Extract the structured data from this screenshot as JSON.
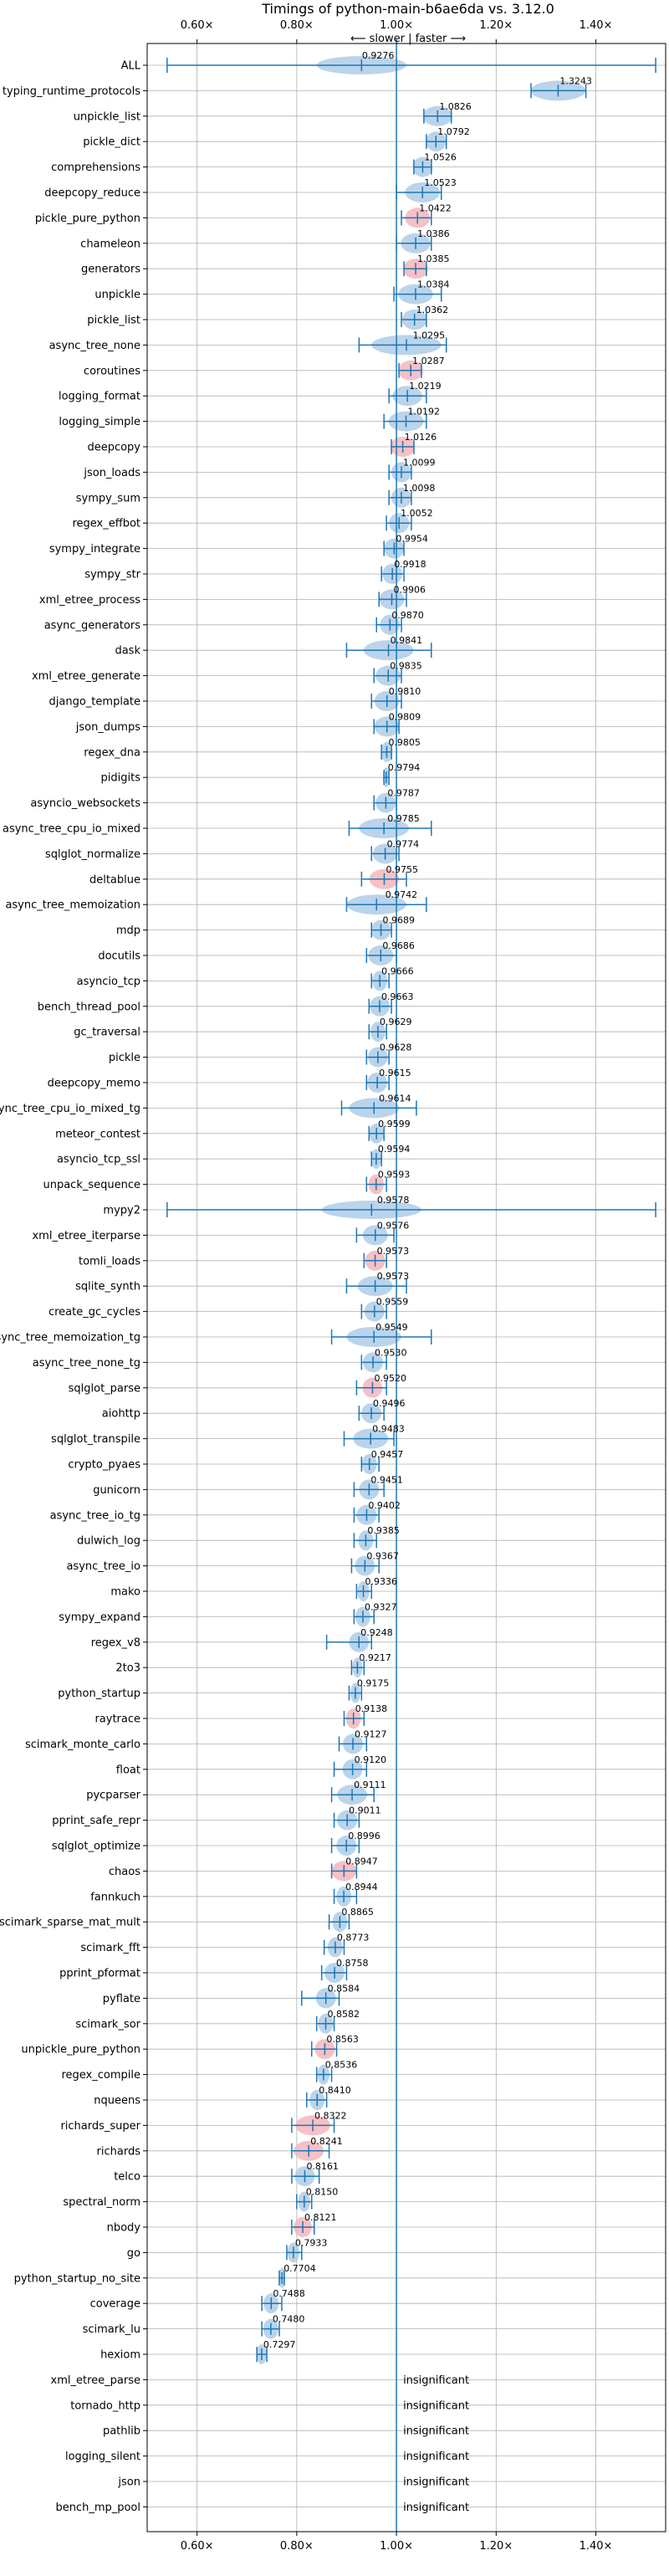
{
  "chart_data": {
    "type": "violin",
    "title": "Timings of python-main-b6ae6da vs. 3.12.0",
    "subtitle": "⟵ slower | faster ⟶",
    "xlim": [
      0.5,
      1.54
    ],
    "xticks": [
      0.6,
      0.8,
      1.0,
      1.2,
      1.4
    ],
    "xtick_labels": [
      "0.60×",
      "0.80×",
      "1.00×",
      "1.20×",
      "1.40×"
    ],
    "reference_line": 1.0,
    "grid": true,
    "colors": {
      "violin": "#aecde8",
      "violin_slower": "#f4b6bc",
      "line": "#1f77b4"
    },
    "insignificant_text": "insignificant",
    "benchmarks": [
      {
        "name": "ALL",
        "value": "0.9276",
        "center": 0.93,
        "lo": 0.54,
        "hi": 1.52,
        "spread": 0.09,
        "slower": false
      },
      {
        "name": "typing_runtime_protocols",
        "value": "1.3243",
        "center": 1.3243,
        "lo": 1.27,
        "hi": 1.38,
        "spread": 0.055,
        "slower": false
      },
      {
        "name": "unpickle_list",
        "value": "1.0826",
        "center": 1.0826,
        "lo": 1.055,
        "hi": 1.11,
        "spread": 0.03,
        "slower": false
      },
      {
        "name": "pickle_dict",
        "value": "1.0792",
        "center": 1.0792,
        "lo": 1.06,
        "hi": 1.1,
        "spread": 0.02,
        "slower": false
      },
      {
        "name": "comprehensions",
        "value": "1.0526",
        "center": 1.0526,
        "lo": 1.035,
        "hi": 1.07,
        "spread": 0.02,
        "slower": false
      },
      {
        "name": "deepcopy_reduce",
        "value": "1.0523",
        "center": 1.0523,
        "lo": 1.0,
        "hi": 1.09,
        "spread": 0.035,
        "slower": false
      },
      {
        "name": "pickle_pure_python",
        "value": "1.0422",
        "center": 1.0422,
        "lo": 1.01,
        "hi": 1.07,
        "spread": 0.025,
        "slower": true
      },
      {
        "name": "chameleon",
        "value": "1.0386",
        "center": 1.0386,
        "lo": 1.0,
        "hi": 1.07,
        "spread": 0.03,
        "slower": false
      },
      {
        "name": "generators",
        "value": "1.0385",
        "center": 1.0385,
        "lo": 1.015,
        "hi": 1.06,
        "spread": 0.025,
        "slower": true
      },
      {
        "name": "unpickle",
        "value": "1.0384",
        "center": 1.0384,
        "lo": 0.995,
        "hi": 1.09,
        "spread": 0.035,
        "slower": false
      },
      {
        "name": "pickle_list",
        "value": "1.0362",
        "center": 1.0362,
        "lo": 1.01,
        "hi": 1.06,
        "spread": 0.025,
        "slower": false
      },
      {
        "name": "async_tree_none",
        "value": "1.0295",
        "center": 1.02,
        "lo": 0.925,
        "hi": 1.1,
        "spread": 0.07,
        "slower": false
      },
      {
        "name": "coroutines",
        "value": "1.0287",
        "center": 1.0287,
        "lo": 1.005,
        "hi": 1.05,
        "spread": 0.025,
        "slower": true
      },
      {
        "name": "logging_format",
        "value": "1.0219",
        "center": 1.0219,
        "lo": 0.985,
        "hi": 1.06,
        "spread": 0.03,
        "slower": false
      },
      {
        "name": "logging_simple",
        "value": "1.0192",
        "center": 1.0192,
        "lo": 0.975,
        "hi": 1.06,
        "spread": 0.035,
        "slower": false
      },
      {
        "name": "deepcopy",
        "value": "1.0126",
        "center": 1.0126,
        "lo": 0.99,
        "hi": 1.035,
        "spread": 0.025,
        "slower": true
      },
      {
        "name": "json_loads",
        "value": "1.0099",
        "center": 1.0099,
        "lo": 0.985,
        "hi": 1.03,
        "spread": 0.02,
        "slower": false
      },
      {
        "name": "sympy_sum",
        "value": "1.0098",
        "center": 1.0098,
        "lo": 0.985,
        "hi": 1.03,
        "spread": 0.02,
        "slower": false
      },
      {
        "name": "regex_effbot",
        "value": "1.0052",
        "center": 1.0052,
        "lo": 0.98,
        "hi": 1.03,
        "spread": 0.02,
        "slower": false
      },
      {
        "name": "sympy_integrate",
        "value": "0.9954",
        "center": 0.9954,
        "lo": 0.975,
        "hi": 1.015,
        "spread": 0.02,
        "slower": false
      },
      {
        "name": "sympy_str",
        "value": "0.9918",
        "center": 0.9918,
        "lo": 0.97,
        "hi": 1.015,
        "spread": 0.02,
        "slower": false
      },
      {
        "name": "xml_etree_process",
        "value": "0.9906",
        "center": 0.9906,
        "lo": 0.965,
        "hi": 1.02,
        "spread": 0.025,
        "slower": false
      },
      {
        "name": "async_generators",
        "value": "0.9870",
        "center": 0.987,
        "lo": 0.96,
        "hi": 1.01,
        "spread": 0.02,
        "slower": false
      },
      {
        "name": "dask",
        "value": "0.9841",
        "center": 0.9841,
        "lo": 0.9,
        "hi": 1.07,
        "spread": 0.05,
        "slower": false
      },
      {
        "name": "xml_etree_generate",
        "value": "0.9835",
        "center": 0.9835,
        "lo": 0.955,
        "hi": 1.01,
        "spread": 0.025,
        "slower": false
      },
      {
        "name": "django_template",
        "value": "0.9810",
        "center": 0.981,
        "lo": 0.95,
        "hi": 1.01,
        "spread": 0.025,
        "slower": false
      },
      {
        "name": "json_dumps",
        "value": "0.9809",
        "center": 0.9809,
        "lo": 0.955,
        "hi": 1.005,
        "spread": 0.025,
        "slower": false
      },
      {
        "name": "regex_dna",
        "value": "0.9805",
        "center": 0.9805,
        "lo": 0.97,
        "hi": 0.99,
        "spread": 0.012,
        "slower": false
      },
      {
        "name": "pidigits",
        "value": "0.9794",
        "center": 0.9794,
        "lo": 0.975,
        "hi": 0.985,
        "spread": 0.006,
        "slower": false
      },
      {
        "name": "asyncio_websockets",
        "value": "0.9787",
        "center": 0.9787,
        "lo": 0.955,
        "hi": 1.0,
        "spread": 0.02,
        "slower": false
      },
      {
        "name": "async_tree_cpu_io_mixed",
        "value": "0.9785",
        "center": 0.975,
        "lo": 0.905,
        "hi": 1.07,
        "spread": 0.05,
        "slower": false
      },
      {
        "name": "sqlglot_normalize",
        "value": "0.9774",
        "center": 0.9774,
        "lo": 0.95,
        "hi": 1.005,
        "spread": 0.025,
        "slower": false
      },
      {
        "name": "deltablue",
        "value": "0.9755",
        "center": 0.9755,
        "lo": 0.93,
        "hi": 1.02,
        "spread": 0.03,
        "slower": true
      },
      {
        "name": "async_tree_memoization",
        "value": "0.9742",
        "center": 0.96,
        "lo": 0.9,
        "hi": 1.06,
        "spread": 0.06,
        "slower": false
      },
      {
        "name": "mdp",
        "value": "0.9689",
        "center": 0.9689,
        "lo": 0.95,
        "hi": 0.99,
        "spread": 0.02,
        "slower": false
      },
      {
        "name": "docutils",
        "value": "0.9686",
        "center": 0.9686,
        "lo": 0.94,
        "hi": 1.0,
        "spread": 0.025,
        "slower": false
      },
      {
        "name": "asyncio_tcp",
        "value": "0.9666",
        "center": 0.9666,
        "lo": 0.95,
        "hi": 0.985,
        "spread": 0.015,
        "slower": false
      },
      {
        "name": "bench_thread_pool",
        "value": "0.9663",
        "center": 0.9663,
        "lo": 0.945,
        "hi": 0.99,
        "spread": 0.02,
        "slower": false
      },
      {
        "name": "gc_traversal",
        "value": "0.9629",
        "center": 0.9629,
        "lo": 0.945,
        "hi": 0.98,
        "spread": 0.015,
        "slower": false
      },
      {
        "name": "pickle",
        "value": "0.9628",
        "center": 0.9628,
        "lo": 0.94,
        "hi": 0.985,
        "spread": 0.02,
        "slower": false
      },
      {
        "name": "deepcopy_memo",
        "value": "0.9615",
        "center": 0.9615,
        "lo": 0.94,
        "hi": 0.985,
        "spread": 0.02,
        "slower": false
      },
      {
        "name": "async_tree_cpu_io_mixed_tg",
        "value": "0.9614",
        "center": 0.955,
        "lo": 0.89,
        "hi": 1.04,
        "spread": 0.05,
        "slower": false
      },
      {
        "name": "meteor_contest",
        "value": "0.9599",
        "center": 0.9599,
        "lo": 0.945,
        "hi": 0.975,
        "spread": 0.015,
        "slower": false
      },
      {
        "name": "asyncio_tcp_ssl",
        "value": "0.9594",
        "center": 0.9594,
        "lo": 0.95,
        "hi": 0.97,
        "spread": 0.01,
        "slower": false
      },
      {
        "name": "unpack_sequence",
        "value": "0.9593",
        "center": 0.9593,
        "lo": 0.94,
        "hi": 0.98,
        "spread": 0.015,
        "slower": true
      },
      {
        "name": "mypy2",
        "value": "0.9578",
        "center": 0.95,
        "lo": 0.54,
        "hi": 1.52,
        "spread": 0.1,
        "slower": false
      },
      {
        "name": "xml_etree_iterparse",
        "value": "0.9576",
        "center": 0.9576,
        "lo": 0.92,
        "hi": 0.995,
        "spread": 0.025,
        "slower": false
      },
      {
        "name": "tomli_loads",
        "value": "0.9573",
        "center": 0.9573,
        "lo": 0.935,
        "hi": 0.98,
        "spread": 0.02,
        "slower": true
      },
      {
        "name": "sqlite_synth",
        "value": "0.9573",
        "center": 0.9573,
        "lo": 0.9,
        "hi": 1.02,
        "spread": 0.035,
        "slower": false
      },
      {
        "name": "create_gc_cycles",
        "value": "0.9559",
        "center": 0.9559,
        "lo": 0.93,
        "hi": 0.98,
        "spread": 0.02,
        "slower": false
      },
      {
        "name": "async_tree_memoization_tg",
        "value": "0.9549",
        "center": 0.9549,
        "lo": 0.87,
        "hi": 1.07,
        "spread": 0.055,
        "slower": false
      },
      {
        "name": "async_tree_none_tg",
        "value": "0.9530",
        "center": 0.953,
        "lo": 0.93,
        "hi": 0.98,
        "spread": 0.02,
        "slower": false
      },
      {
        "name": "sqlglot_parse",
        "value": "0.9520",
        "center": 0.952,
        "lo": 0.92,
        "hi": 0.98,
        "spread": 0.02,
        "slower": true
      },
      {
        "name": "aiohttp",
        "value": "0.9496",
        "center": 0.9496,
        "lo": 0.925,
        "hi": 0.975,
        "spread": 0.02,
        "slower": false
      },
      {
        "name": "sqlglot_transpile",
        "value": "0.9483",
        "center": 0.9483,
        "lo": 0.895,
        "hi": 0.995,
        "spread": 0.035,
        "slower": false
      },
      {
        "name": "crypto_pyaes",
        "value": "0.9457",
        "center": 0.9457,
        "lo": 0.93,
        "hi": 0.965,
        "spread": 0.015,
        "slower": false
      },
      {
        "name": "gunicorn",
        "value": "0.9451",
        "center": 0.9451,
        "lo": 0.915,
        "hi": 0.975,
        "spread": 0.02,
        "slower": false
      },
      {
        "name": "async_tree_io_tg",
        "value": "0.9402",
        "center": 0.9402,
        "lo": 0.915,
        "hi": 0.965,
        "spread": 0.02,
        "slower": false
      },
      {
        "name": "dulwich_log",
        "value": "0.9385",
        "center": 0.9385,
        "lo": 0.915,
        "hi": 0.96,
        "spread": 0.015,
        "slower": false
      },
      {
        "name": "async_tree_io",
        "value": "0.9367",
        "center": 0.9367,
        "lo": 0.91,
        "hi": 0.965,
        "spread": 0.02,
        "slower": false
      },
      {
        "name": "mako",
        "value": "0.9336",
        "center": 0.9336,
        "lo": 0.92,
        "hi": 0.95,
        "spread": 0.012,
        "slower": false
      },
      {
        "name": "sympy_expand",
        "value": "0.9327",
        "center": 0.9327,
        "lo": 0.915,
        "hi": 0.955,
        "spread": 0.015,
        "slower": false
      },
      {
        "name": "regex_v8",
        "value": "0.9248",
        "center": 0.9248,
        "lo": 0.86,
        "hi": 0.95,
        "spread": 0.02,
        "slower": false
      },
      {
        "name": "2to3",
        "value": "0.9217",
        "center": 0.9217,
        "lo": 0.91,
        "hi": 0.935,
        "spread": 0.01,
        "slower": false
      },
      {
        "name": "python_startup",
        "value": "0.9175",
        "center": 0.9175,
        "lo": 0.905,
        "hi": 0.93,
        "spread": 0.01,
        "slower": false
      },
      {
        "name": "raytrace",
        "value": "0.9138",
        "center": 0.9138,
        "lo": 0.895,
        "hi": 0.935,
        "spread": 0.015,
        "slower": true
      },
      {
        "name": "scimark_monte_carlo",
        "value": "0.9127",
        "center": 0.9127,
        "lo": 0.885,
        "hi": 0.94,
        "spread": 0.02,
        "slower": false
      },
      {
        "name": "float",
        "value": "0.9120",
        "center": 0.912,
        "lo": 0.875,
        "hi": 0.94,
        "spread": 0.02,
        "slower": false
      },
      {
        "name": "pycparser",
        "value": "0.9111",
        "center": 0.9111,
        "lo": 0.87,
        "hi": 0.955,
        "spread": 0.03,
        "slower": false
      },
      {
        "name": "pprint_safe_repr",
        "value": "0.9011",
        "center": 0.9011,
        "lo": 0.875,
        "hi": 0.925,
        "spread": 0.02,
        "slower": false
      },
      {
        "name": "sqlglot_optimize",
        "value": "0.8996",
        "center": 0.8996,
        "lo": 0.87,
        "hi": 0.925,
        "spread": 0.02,
        "slower": false
      },
      {
        "name": "chaos",
        "value": "0.8947",
        "center": 0.8947,
        "lo": 0.87,
        "hi": 0.92,
        "spread": 0.025,
        "slower": true
      },
      {
        "name": "fannkuch",
        "value": "0.8944",
        "center": 0.8944,
        "lo": 0.875,
        "hi": 0.92,
        "spread": 0.015,
        "slower": false
      },
      {
        "name": "scimark_sparse_mat_mult",
        "value": "0.8865",
        "center": 0.8865,
        "lo": 0.865,
        "hi": 0.905,
        "spread": 0.015,
        "slower": false
      },
      {
        "name": "scimark_fft",
        "value": "0.8773",
        "center": 0.8773,
        "lo": 0.855,
        "hi": 0.895,
        "spread": 0.015,
        "slower": false
      },
      {
        "name": "pprint_pformat",
        "value": "0.8758",
        "center": 0.8758,
        "lo": 0.85,
        "hi": 0.9,
        "spread": 0.02,
        "slower": false
      },
      {
        "name": "pyflate",
        "value": "0.8584",
        "center": 0.8584,
        "lo": 0.81,
        "hi": 0.885,
        "spread": 0.02,
        "slower": false
      },
      {
        "name": "scimark_sor",
        "value": "0.8582",
        "center": 0.8582,
        "lo": 0.84,
        "hi": 0.875,
        "spread": 0.015,
        "slower": false
      },
      {
        "name": "unpickle_pure_python",
        "value": "0.8563",
        "center": 0.8563,
        "lo": 0.83,
        "hi": 0.88,
        "spread": 0.02,
        "slower": true
      },
      {
        "name": "regex_compile",
        "value": "0.8536",
        "center": 0.8536,
        "lo": 0.84,
        "hi": 0.87,
        "spread": 0.012,
        "slower": false
      },
      {
        "name": "nqueens",
        "value": "0.8410",
        "center": 0.841,
        "lo": 0.82,
        "hi": 0.86,
        "spread": 0.015,
        "slower": false
      },
      {
        "name": "richards_super",
        "value": "0.8322",
        "center": 0.8322,
        "lo": 0.79,
        "hi": 0.875,
        "spread": 0.035,
        "slower": true
      },
      {
        "name": "richards",
        "value": "0.8241",
        "center": 0.8241,
        "lo": 0.79,
        "hi": 0.865,
        "spread": 0.03,
        "slower": true
      },
      {
        "name": "telco",
        "value": "0.8161",
        "center": 0.8161,
        "lo": 0.79,
        "hi": 0.845,
        "spread": 0.02,
        "slower": false
      },
      {
        "name": "spectral_norm",
        "value": "0.8150",
        "center": 0.815,
        "lo": 0.8,
        "hi": 0.83,
        "spread": 0.012,
        "slower": false
      },
      {
        "name": "nbody",
        "value": "0.8121",
        "center": 0.8121,
        "lo": 0.79,
        "hi": 0.835,
        "spread": 0.018,
        "slower": true
      },
      {
        "name": "go",
        "value": "0.7933",
        "center": 0.7933,
        "lo": 0.78,
        "hi": 0.81,
        "spread": 0.012,
        "slower": false
      },
      {
        "name": "python_startup_no_site",
        "value": "0.7704",
        "center": 0.7704,
        "lo": 0.765,
        "hi": 0.775,
        "spread": 0.006,
        "slower": false
      },
      {
        "name": "coverage",
        "value": "0.7488",
        "center": 0.7488,
        "lo": 0.73,
        "hi": 0.77,
        "spread": 0.015,
        "slower": false
      },
      {
        "name": "scimark_lu",
        "value": "0.7480",
        "center": 0.748,
        "lo": 0.73,
        "hi": 0.765,
        "spread": 0.015,
        "slower": false
      },
      {
        "name": "hexiom",
        "value": "0.7297",
        "center": 0.7297,
        "lo": 0.72,
        "hi": 0.74,
        "spread": 0.01,
        "slower": false
      },
      {
        "name": "xml_etree_parse",
        "value": null,
        "insignificant": true
      },
      {
        "name": "tornado_http",
        "value": null,
        "insignificant": true
      },
      {
        "name": "pathlib",
        "value": null,
        "insignificant": true
      },
      {
        "name": "logging_silent",
        "value": null,
        "insignificant": true
      },
      {
        "name": "json",
        "value": null,
        "insignificant": true
      },
      {
        "name": "bench_mp_pool",
        "value": null,
        "insignificant": true
      }
    ]
  }
}
